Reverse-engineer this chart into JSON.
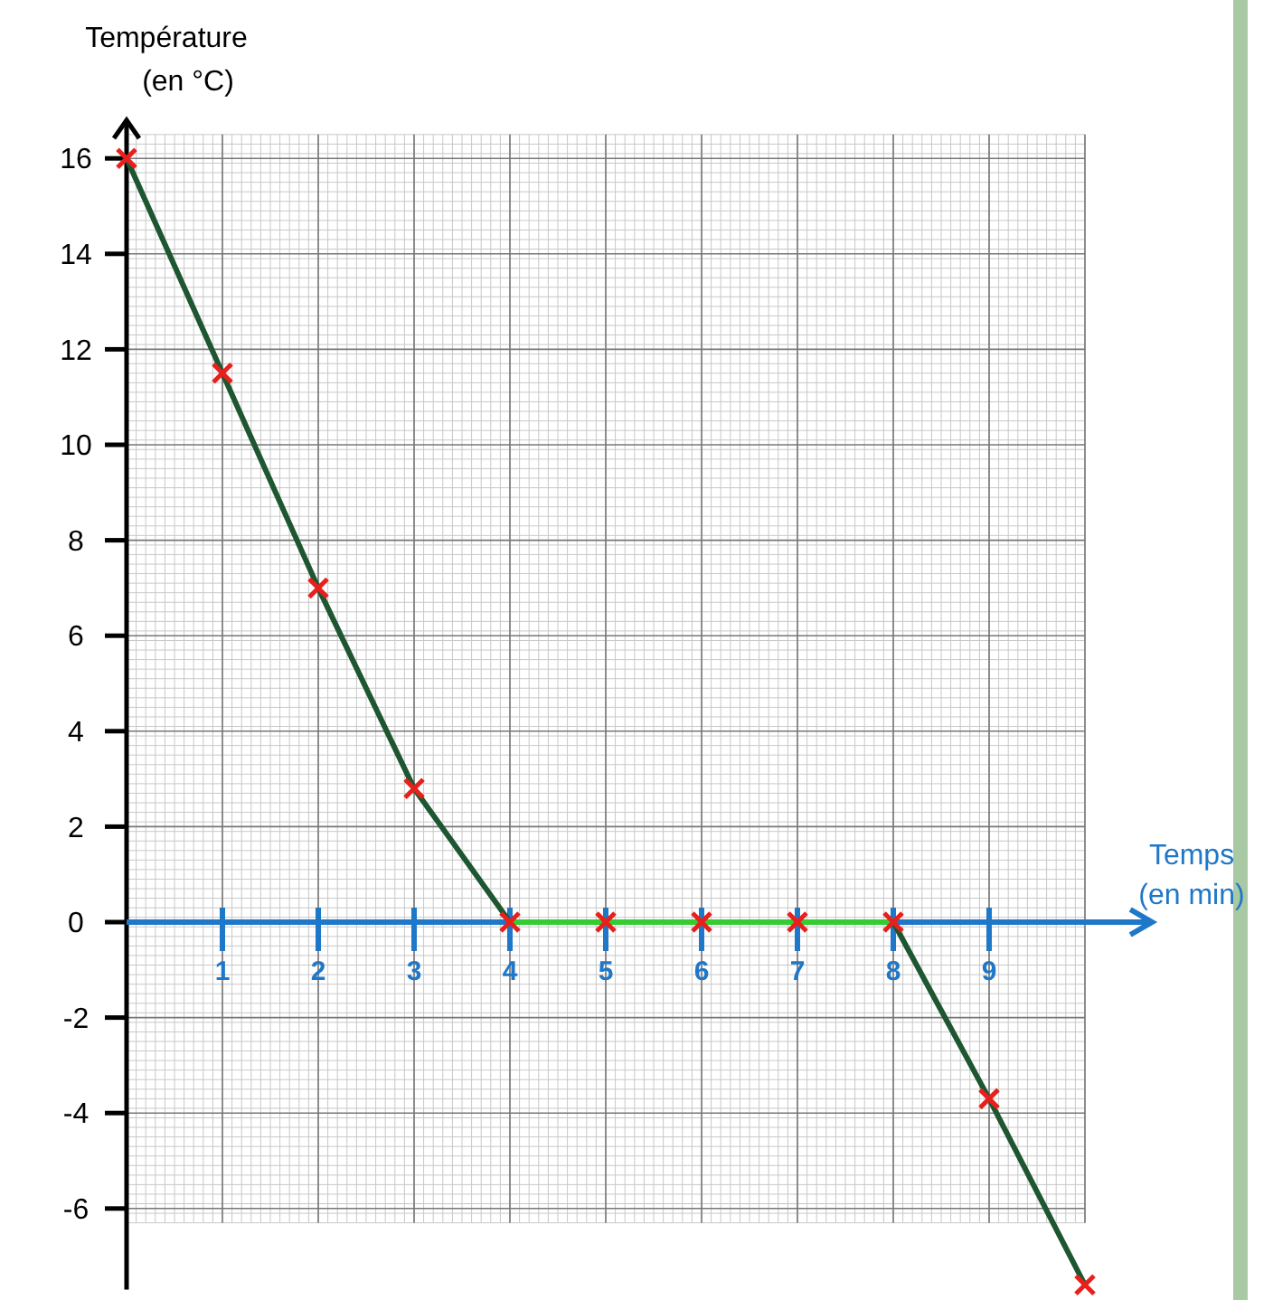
{
  "chart_data": {
    "type": "line",
    "xlabel": "Temps\n(en min)",
    "ylabel": "Température\n(en °C)",
    "x": [
      0,
      1,
      2,
      3,
      4,
      5,
      6,
      7,
      8,
      9,
      10
    ],
    "series": [
      {
        "color": "#1e5631",
        "values": [
          16,
          11.5,
          7,
          2.8,
          0,
          0,
          0,
          0,
          0,
          -3.7,
          -7.6
        ]
      },
      {
        "color": "#33cc33",
        "x": [
          4,
          8
        ],
        "values": [
          0,
          0
        ]
      },
      {
        "type": "scatter",
        "color": "#e8201c",
        "marker": "cross",
        "values": [
          16,
          11.5,
          7,
          2.8,
          0,
          0,
          0,
          0,
          0,
          -3.7,
          -7.6
        ]
      }
    ],
    "xlim": [
      0,
      10.7
    ],
    "xticks": [
      1,
      2,
      3,
      4,
      5,
      6,
      7,
      8,
      9
    ],
    "ylim": [
      -7.7,
      16.8
    ],
    "yticks": [
      -6,
      -4,
      -2,
      0,
      2,
      4,
      6,
      8,
      10,
      12,
      14,
      16
    ],
    "grid": true
  }
}
